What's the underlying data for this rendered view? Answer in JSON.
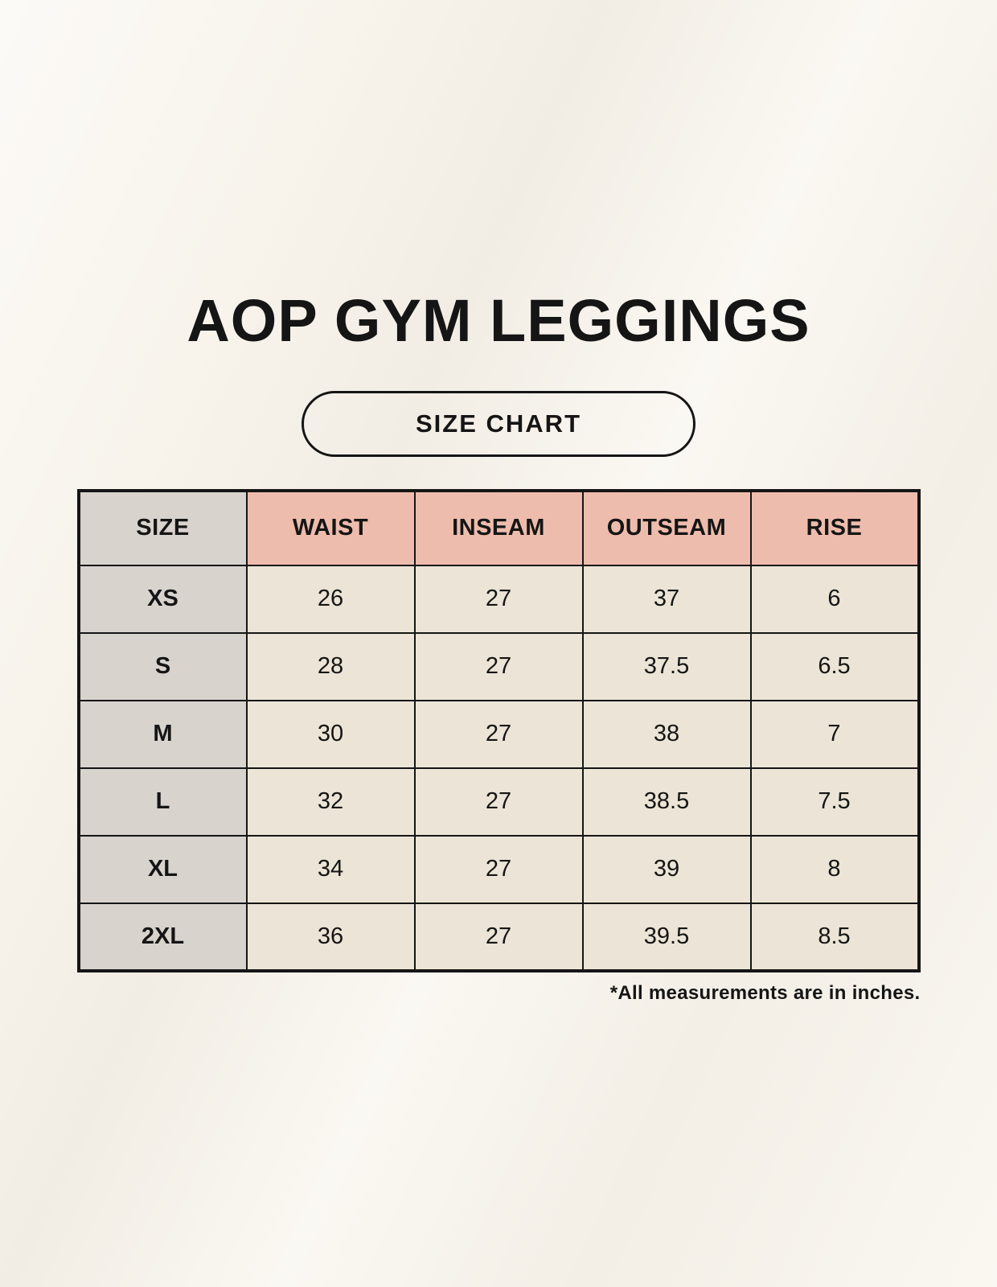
{
  "page": {
    "title": "AOP GYM LEGGINGS",
    "badge_label": "SIZE CHART",
    "footnote": "*All measurements are in inches."
  },
  "table": {
    "columns": [
      "SIZE",
      "WAIST",
      "INSEAM",
      "OUTSEAM",
      "RISE"
    ],
    "rows": [
      [
        "XS",
        "26",
        "27",
        "37",
        "6"
      ],
      [
        "S",
        "28",
        "27",
        "37.5",
        "6.5"
      ],
      [
        "M",
        "30",
        "27",
        "38",
        "7"
      ],
      [
        "L",
        "32",
        "27",
        "38.5",
        "7.5"
      ],
      [
        "XL",
        "34",
        "27",
        "39",
        "8"
      ],
      [
        "2XL",
        "36",
        "27",
        "39.5",
        "8.5"
      ]
    ]
  },
  "chart_data": {
    "type": "table",
    "title": "AOP GYM LEGGINGS",
    "subtitle": "SIZE CHART",
    "columns": [
      "SIZE",
      "WAIST",
      "INSEAM",
      "OUTSEAM",
      "RISE"
    ],
    "rows": [
      {
        "size": "XS",
        "waist": 26,
        "inseam": 27,
        "outseam": 37,
        "rise": 6
      },
      {
        "size": "S",
        "waist": 28,
        "inseam": 27,
        "outseam": 37.5,
        "rise": 6.5
      },
      {
        "size": "M",
        "waist": 30,
        "inseam": 27,
        "outseam": 38,
        "rise": 7
      },
      {
        "size": "L",
        "waist": 32,
        "inseam": 27,
        "outseam": 38.5,
        "rise": 7.5
      },
      {
        "size": "XL",
        "waist": 34,
        "inseam": 27,
        "outseam": 39,
        "rise": 8
      },
      {
        "size": "2XL",
        "waist": 36,
        "inseam": 27,
        "outseam": 39.5,
        "rise": 8.5
      }
    ],
    "units": "inches",
    "footnote": "*All measurements are in inches."
  },
  "colors": {
    "bg": "#f8f4ec",
    "ink": "#151515",
    "header-pink": "#eebcac",
    "size-gray": "#d9d3cd",
    "cell-cream": "#ece4d6"
  }
}
